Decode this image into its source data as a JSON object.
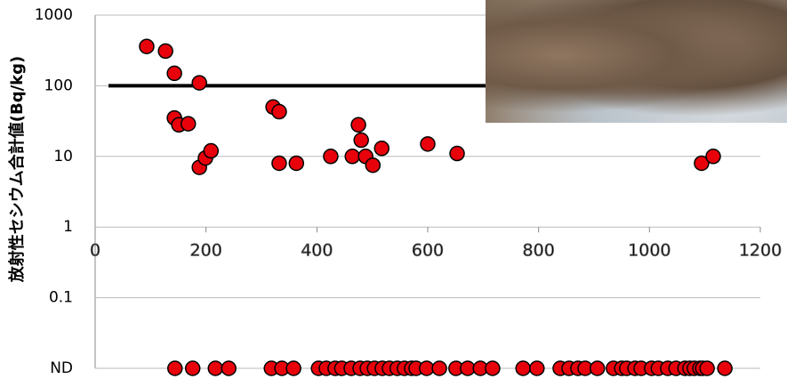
{
  "chart_data": {
    "type": "scatter",
    "y_label": "放射性セシウム合計値(Bq/kg)",
    "log_y": true,
    "grid": true,
    "threshold": 100,
    "xlim": [
      0,
      1200
    ],
    "xticks": [
      0,
      200,
      400,
      600,
      800,
      1000,
      1200
    ],
    "ylim": [
      0.01,
      1000
    ],
    "yticks": [
      {
        "value": 0.01,
        "label": "ND"
      },
      0.1,
      1,
      10,
      100,
      1000
    ],
    "series": [
      {
        "color": "#e8000b",
        "x": [
          93,
          127,
          143,
          188,
          143,
          151,
          168,
          188,
          199,
          209,
          321,
          332,
          332,
          363,
          425,
          464,
          475,
          480,
          488,
          501,
          517,
          600,
          653,
          1094,
          1115
        ],
        "values": [
          360,
          310,
          150,
          110,
          35,
          28,
          29,
          7,
          9.5,
          12,
          50,
          43,
          8,
          8,
          10,
          10,
          28,
          17,
          10,
          7.5,
          13,
          15,
          11,
          8,
          10
        ]
      },
      {
        "color": "#e8000b",
        "x": [
          144,
          176,
          217,
          241,
          318,
          337,
          358,
          403,
          417,
          433,
          445,
          462,
          478,
          491,
          504,
          518,
          531,
          545,
          558,
          571,
          579,
          598,
          621,
          651,
          672,
          695,
          717,
          772,
          797,
          839,
          855,
          871,
          884,
          906,
          935,
          950,
          959,
          974,
          985,
          1004,
          1016,
          1033,
          1048,
          1064,
          1073,
          1081,
          1091,
          1096,
          1104,
          1136
        ],
        "values": [
          0.01,
          0.01,
          0.01,
          0.01,
          0.01,
          0.01,
          0.01,
          0.01,
          0.01,
          0.01,
          0.01,
          0.01,
          0.01,
          0.01,
          0.01,
          0.01,
          0.01,
          0.01,
          0.01,
          0.01,
          0.01,
          0.01,
          0.01,
          0.01,
          0.01,
          0.01,
          0.01,
          0.01,
          0.01,
          0.01,
          0.01,
          0.01,
          0.01,
          0.01,
          0.01,
          0.01,
          0.01,
          0.01,
          0.01,
          0.01,
          0.01,
          0.01,
          0.01,
          0.01,
          0.01,
          0.01,
          0.01,
          0.01,
          0.01,
          0.01
        ]
      }
    ]
  }
}
